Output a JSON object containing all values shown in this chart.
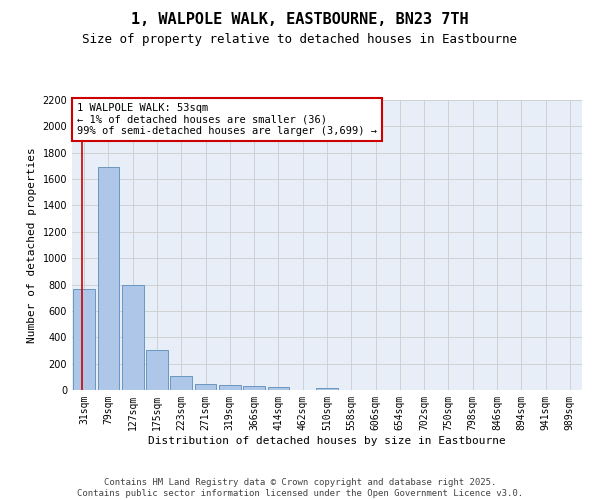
{
  "title": "1, WALPOLE WALK, EASTBOURNE, BN23 7TH",
  "subtitle": "Size of property relative to detached houses in Eastbourne",
  "xlabel": "Distribution of detached houses by size in Eastbourne",
  "ylabel": "Number of detached properties",
  "categories": [
    "31sqm",
    "79sqm",
    "127sqm",
    "175sqm",
    "223sqm",
    "271sqm",
    "319sqm",
    "366sqm",
    "414sqm",
    "462sqm",
    "510sqm",
    "558sqm",
    "606sqm",
    "654sqm",
    "702sqm",
    "750sqm",
    "798sqm",
    "846sqm",
    "894sqm",
    "941sqm",
    "989sqm"
  ],
  "values": [
    770,
    1695,
    800,
    300,
    110,
    42,
    37,
    32,
    22,
    0,
    18,
    0,
    0,
    0,
    0,
    0,
    0,
    0,
    0,
    0,
    0
  ],
  "bar_color": "#aec6e8",
  "bar_edge_color": "#5b8db8",
  "marker_color": "#cc0000",
  "annotation_text": "1 WALPOLE WALK: 53sqm\n← 1% of detached houses are smaller (36)\n99% of semi-detached houses are larger (3,699) →",
  "annotation_box_color": "#ffffff",
  "annotation_box_edge_color": "#cc0000",
  "ylim": [
    0,
    2200
  ],
  "yticks": [
    0,
    200,
    400,
    600,
    800,
    1000,
    1200,
    1400,
    1600,
    1800,
    2000,
    2200
  ],
  "grid_color": "#cccccc",
  "background_color": "#e8eef8",
  "footer_text": "Contains HM Land Registry data © Crown copyright and database right 2025.\nContains public sector information licensed under the Open Government Licence v3.0.",
  "title_fontsize": 11,
  "subtitle_fontsize": 9,
  "axis_label_fontsize": 8,
  "tick_fontsize": 7,
  "annotation_fontsize": 7.5,
  "footer_fontsize": 6.5
}
